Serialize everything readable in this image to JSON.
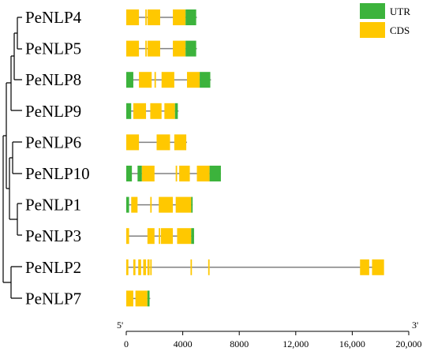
{
  "legend": [
    {
      "label": "UTR",
      "color": "#3cb33c"
    },
    {
      "label": "CDS",
      "color": "#ffc800"
    }
  ],
  "colors": {
    "utr": "#3cb33c",
    "cds": "#ffc800",
    "intron": "#808080",
    "tree": "#000000"
  },
  "axis": {
    "start_label": "5'",
    "end_label": "3'",
    "ticks": [
      "0",
      "4000",
      "8000",
      "12,000",
      "16,000",
      "20,000"
    ],
    "range": [
      0,
      20000
    ]
  },
  "genes": [
    {
      "name": "PeNLP4",
      "length": 5000,
      "cds": [
        [
          0,
          900
        ],
        [
          1350,
          1450
        ],
        [
          1500,
          2400
        ],
        [
          3300,
          4200
        ]
      ],
      "utr": [
        [
          4200,
          4950
        ]
      ]
    },
    {
      "name": "PeNLP5",
      "length": 5000,
      "cds": [
        [
          0,
          900
        ],
        [
          1350,
          1450
        ],
        [
          1500,
          2400
        ],
        [
          3300,
          4200
        ]
      ],
      "utr": [
        [
          4200,
          4950
        ]
      ]
    },
    {
      "name": "PeNLP8",
      "length": 6000,
      "cds": [
        [
          900,
          1800
        ],
        [
          2000,
          2100
        ],
        [
          2500,
          3400
        ],
        [
          4300,
          5200
        ]
      ],
      "utr": [
        [
          0,
          500
        ],
        [
          5200,
          5950
        ]
      ]
    },
    {
      "name": "PeNLP9",
      "length": 3700,
      "cds": [
        [
          500,
          1400
        ],
        [
          1700,
          2500
        ],
        [
          2700,
          3450
        ]
      ],
      "utr": [
        [
          0,
          350
        ],
        [
          3450,
          3650
        ]
      ]
    },
    {
      "name": "PeNLP6",
      "length": 4300,
      "cds": [
        [
          0,
          900
        ],
        [
          2150,
          3100
        ],
        [
          3400,
          4250
        ]
      ],
      "utr": []
    },
    {
      "name": "PeNLP10",
      "length": 6700,
      "cds": [
        [
          1100,
          2000
        ],
        [
          3500,
          3600
        ],
        [
          3750,
          4500
        ],
        [
          5000,
          5900
        ]
      ],
      "utr": [
        [
          0,
          400
        ],
        [
          800,
          1100
        ],
        [
          5900,
          6700
        ]
      ]
    },
    {
      "name": "PeNLP1",
      "length": 4700,
      "cds": [
        [
          350,
          800
        ],
        [
          1700,
          1800
        ],
        [
          2300,
          3300
        ],
        [
          3500,
          4600
        ]
      ],
      "utr": [
        [
          0,
          200
        ],
        [
          4600,
          4700
        ]
      ]
    },
    {
      "name": "PeNLP3",
      "length": 4800,
      "cds": [
        [
          0,
          200
        ],
        [
          1500,
          2000
        ],
        [
          2300,
          2400
        ],
        [
          2450,
          3300
        ],
        [
          3600,
          4600
        ]
      ],
      "utr": [
        [
          4600,
          4800
        ]
      ]
    },
    {
      "name": "PeNLP2",
      "length": 18200,
      "cds": [
        [
          0,
          150
        ],
        [
          500,
          650
        ],
        [
          850,
          1050
        ],
        [
          1200,
          1400
        ],
        [
          1500,
          1650
        ],
        [
          1700,
          1800
        ],
        [
          4550,
          4650
        ],
        [
          5800,
          5900
        ],
        [
          16550,
          17200
        ],
        [
          17400,
          18250
        ]
      ],
      "utr": []
    },
    {
      "name": "PeNLP7",
      "length": 1700,
      "cds": [
        [
          0,
          500
        ],
        [
          650,
          1500
        ]
      ],
      "utr": [
        [
          1500,
          1650
        ]
      ]
    }
  ]
}
